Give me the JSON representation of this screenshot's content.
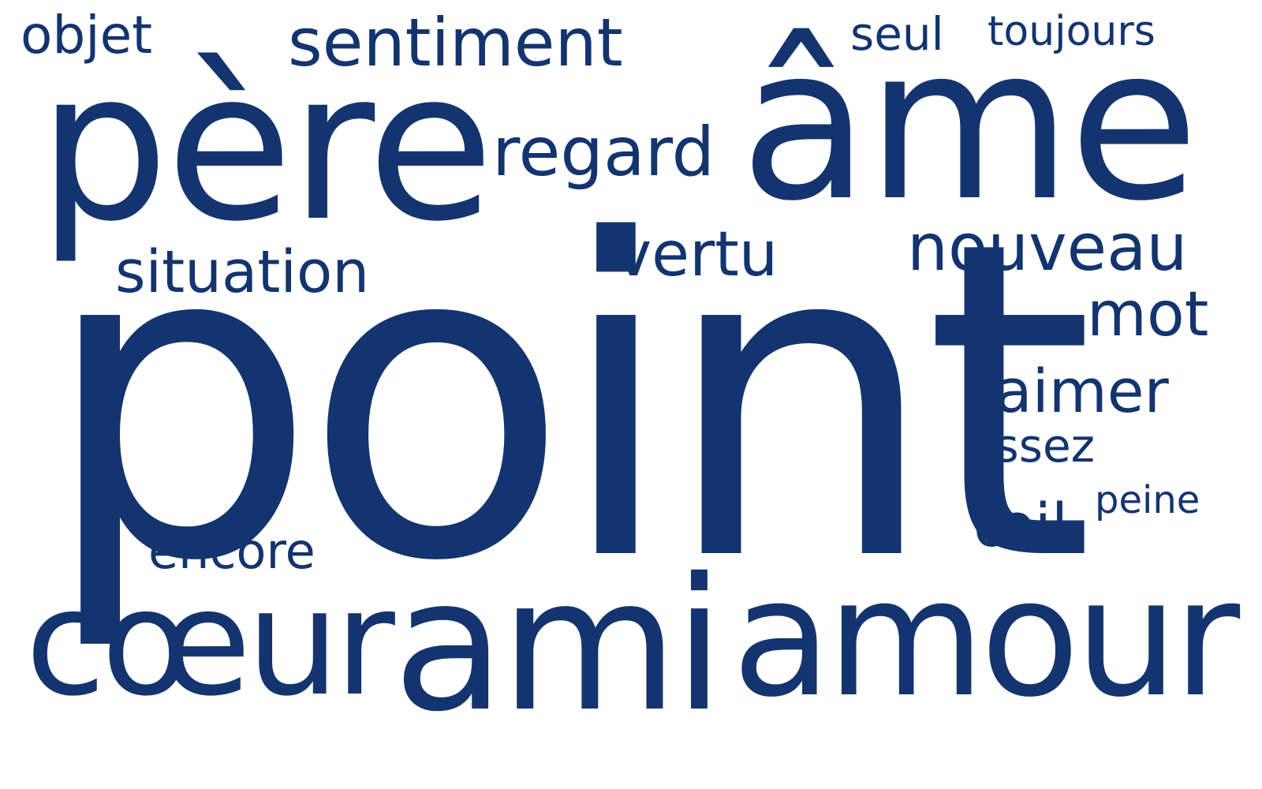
{
  "word_cloud": {
    "text_color": "#13346f",
    "background_color": "#ffffff",
    "words": {
      "objet": "objet",
      "sentiment": "sentiment",
      "seul": "seul",
      "toujours": "toujours",
      "pere": "père",
      "regard": "regard",
      "ame": "âme",
      "situation": "situation",
      "vertu": "vertu",
      "nouveau": "nouveau",
      "mot": "mot",
      "point": "point",
      "aimer": "aimer",
      "assez": "assez",
      "peine": "peine",
      "oeil": "œil",
      "encore": "encore",
      "coeur": "cœur",
      "ami": "ami",
      "amour": "amour"
    }
  }
}
